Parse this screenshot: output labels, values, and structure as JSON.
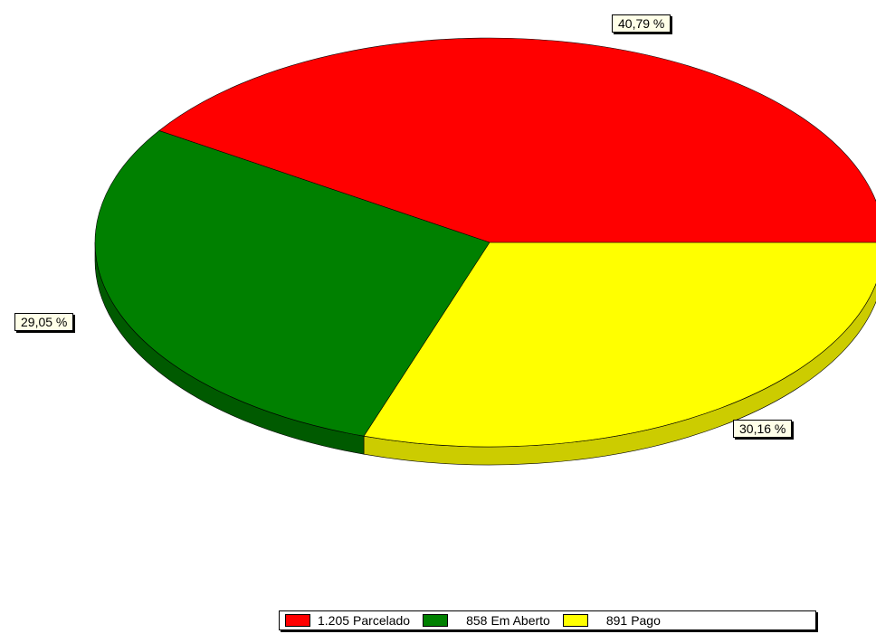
{
  "chart_data": {
    "type": "pie",
    "title": "",
    "slices": [
      {
        "label": "Parcelado",
        "value": 1205,
        "value_text": "1.205",
        "percent_text": "40,79 %",
        "color": "#ff0000",
        "side_color": "#c40000"
      },
      {
        "label": "Em Aberto",
        "value": 858,
        "value_text": "858",
        "percent_text": "29,05 %",
        "color": "#008000",
        "side_color": "#005a00"
      },
      {
        "label": "Pago",
        "value": 891,
        "value_text": "891",
        "percent_text": "30,16 %",
        "color": "#ffff00",
        "side_color": "#cccc00"
      }
    ],
    "legend_position": "bottom-right"
  }
}
